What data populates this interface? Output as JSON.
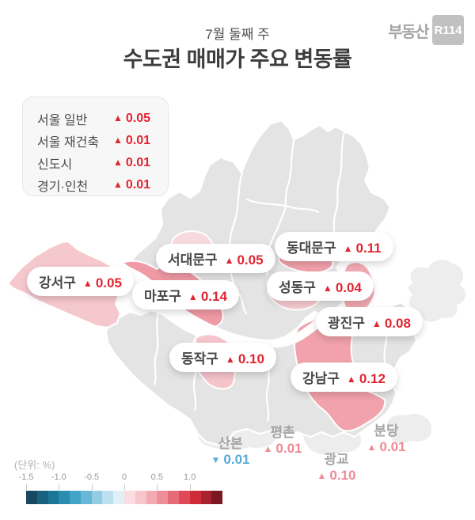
{
  "header": {
    "subtitle": "7월 둘째 주",
    "title": "수도권 매매가 주요 변동률",
    "logo_text": "부동산",
    "logo_badge": "R114"
  },
  "summary": {
    "rows": [
      {
        "label": "서울 일반",
        "dir": "▲",
        "value": "0.05"
      },
      {
        "label": "서울 재건축",
        "dir": "▲",
        "value": "0.01"
      },
      {
        "label": "신도시",
        "dir": "▲",
        "value": "0.01"
      },
      {
        "label": "경기·인천",
        "dir": "▲",
        "value": "0.01"
      }
    ]
  },
  "map_labels": [
    {
      "district": "강서구",
      "dir": "▲",
      "value": "0.05"
    },
    {
      "district": "서대문구",
      "dir": "▲",
      "value": "0.05"
    },
    {
      "district": "마포구",
      "dir": "▲",
      "value": "0.14"
    },
    {
      "district": "동대문구",
      "dir": "▲",
      "value": "0.11"
    },
    {
      "district": "성동구",
      "dir": "▲",
      "value": "0.04"
    },
    {
      "district": "광진구",
      "dir": "▲",
      "value": "0.08"
    },
    {
      "district": "동작구",
      "dir": "▲",
      "value": "0.10"
    },
    {
      "district": "강남구",
      "dir": "▲",
      "value": "0.12"
    }
  ],
  "city_labels": [
    {
      "name": "산본",
      "dir": "▼",
      "value": "0.01",
      "direction": "down"
    },
    {
      "name": "평촌",
      "dir": "▲",
      "value": "0.01",
      "direction": "up"
    },
    {
      "name": "광교",
      "dir": "▲",
      "value": "0.10",
      "direction": "up"
    },
    {
      "name": "분당",
      "dir": "▲",
      "value": "0.01",
      "direction": "up"
    }
  ],
  "scale": {
    "unit_label": "(단위: %)",
    "ticks": [
      "-1.5",
      "-1.0",
      "-0.5",
      "0",
      "0.5",
      "1.0"
    ],
    "range": [
      -1.5,
      1.5
    ],
    "colors": [
      "#174a60",
      "#19617e",
      "#1b7698",
      "#2a8cb0",
      "#43a5c6",
      "#67b8d6",
      "#92cde4",
      "#bce0f0",
      "#e1f0f8",
      "#fbdde1",
      "#f7c6cc",
      "#f3aab2",
      "#ee8e98",
      "#e76b77",
      "#df4955",
      "#cf2b39",
      "#a82230",
      "#7d1722"
    ]
  },
  "colors": {
    "accent_red": "#e02531",
    "value_salmon": "#ef8b96",
    "value_blue": "#5aabd6",
    "map_gray": "#e4e4e4",
    "map_outer_gray": "#ededed",
    "pink_strong": "#f09aa5",
    "pink_mid": "#f3aab4",
    "pink_light": "#f6ccd2",
    "pink_pale": "#f7dade"
  }
}
